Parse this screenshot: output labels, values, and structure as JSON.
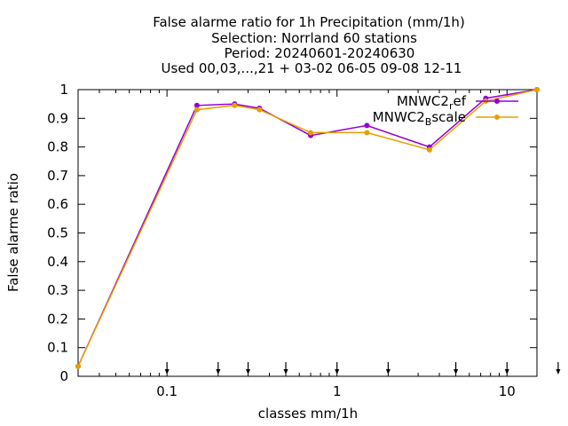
{
  "chart_data": {
    "type": "line",
    "title_lines": [
      "False alarme ratio  for 1h Precipitation (mm/1h)",
      "Selection: Norrland     60 stations",
      "Period: 20240601-20240630",
      "Used 00,03,...,21 + 03-02 06-05 09-08 12-11"
    ],
    "xlabel": "classes mm/1h",
    "ylabel": "False alarme ratio",
    "x_scale": "log",
    "xlim": [
      0.03,
      15
    ],
    "ylim": [
      0,
      1
    ],
    "x_tick_labels": [
      {
        "value": 0.1,
        "label": "0.1"
      },
      {
        "value": 1,
        "label": "1"
      },
      {
        "value": 10,
        "label": "10"
      }
    ],
    "y_ticks": [
      0,
      0.1,
      0.2,
      0.3,
      0.4,
      0.5,
      0.6,
      0.7,
      0.8,
      0.9,
      1
    ],
    "y_tick_labels": [
      "0",
      "0.1",
      "0.2",
      "0.3",
      "0.4",
      "0.5",
      "0.6",
      "0.7",
      "0.8",
      "0.9",
      "1"
    ],
    "class_marker_x": [
      0.1,
      0.2,
      0.3,
      0.5,
      1,
      2,
      5,
      10,
      20
    ],
    "legend_position": "top-right",
    "series": [
      {
        "name_base": "MNWC2",
        "name_sub": "r",
        "name_rest": "ef",
        "color": "#9400D3",
        "x": [
          0.03,
          0.15,
          0.25,
          0.35,
          0.7,
          1.5,
          3.5,
          7.5,
          15
        ],
        "y": [
          0.035,
          0.945,
          0.95,
          0.935,
          0.84,
          0.875,
          0.8,
          0.97,
          1.0
        ]
      },
      {
        "name_base": "MNWC2",
        "name_sub": "B",
        "name_rest": "scale",
        "color": "#E69F00",
        "x": [
          0.03,
          0.15,
          0.25,
          0.35,
          0.7,
          1.5,
          3.5,
          7.5,
          15
        ],
        "y": [
          0.035,
          0.93,
          0.945,
          0.93,
          0.85,
          0.85,
          0.79,
          0.96,
          1.0
        ]
      }
    ]
  }
}
